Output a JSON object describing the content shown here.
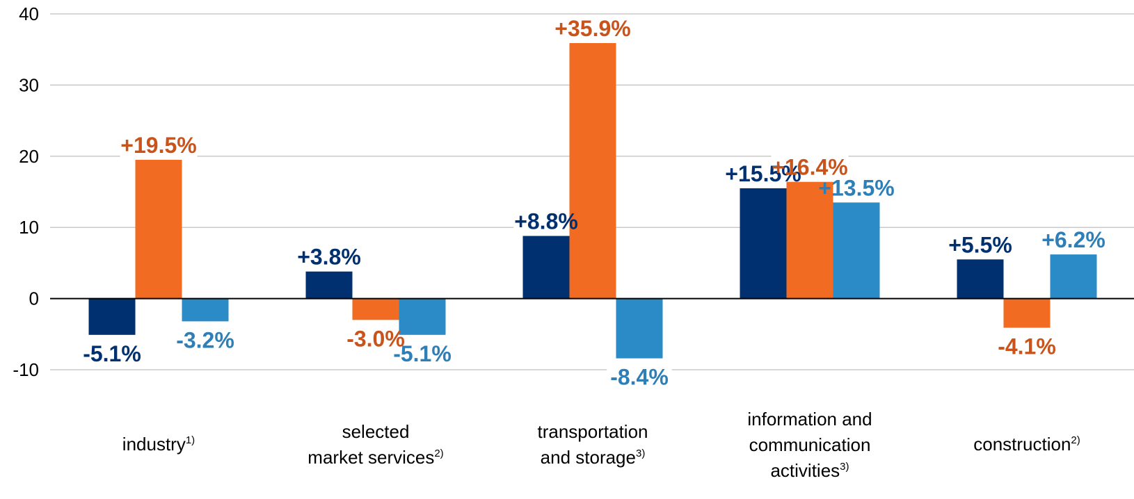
{
  "chart_data": {
    "type": "bar",
    "categories": [
      {
        "lines": [
          "industry"
        ],
        "sup": "1)"
      },
      {
        "lines": [
          "selected",
          "market services"
        ],
        "sup": "2)"
      },
      {
        "lines": [
          "transportation",
          "and storage"
        ],
        "sup": "3)"
      },
      {
        "lines": [
          "information and",
          "communication",
          "activities"
        ],
        "sup": "3)"
      },
      {
        "lines": [
          "construction"
        ],
        "sup": "2)"
      }
    ],
    "series": [
      {
        "color": "#003070",
        "label_color": "#003070",
        "values": [
          -5.1,
          3.8,
          8.8,
          15.5,
          5.5
        ],
        "labels": [
          "-5.1%",
          "+3.8%",
          "+8.8%",
          "+15.5%",
          "+5.5%"
        ]
      },
      {
        "color": "#F26B22",
        "label_color": "#C8541B",
        "values": [
          19.5,
          -3.0,
          35.9,
          16.4,
          -4.1
        ],
        "labels": [
          "+19.5%",
          "-3.0%",
          "+35.9%",
          "+16.4%",
          "-4.1%"
        ]
      },
      {
        "color": "#2B8BC6",
        "label_color": "#2E7FB8",
        "values": [
          -3.2,
          -5.1,
          -8.4,
          13.5,
          6.2
        ],
        "labels": [
          "-3.2%",
          "-5.1%",
          "-8.4%",
          "+13.5%",
          "+6.2%"
        ]
      }
    ],
    "y_ticks": [
      {
        "value": 40,
        "label": "40"
      },
      {
        "value": 30,
        "label": "30"
      },
      {
        "value": 20,
        "label": "20"
      },
      {
        "value": 10,
        "label": "10"
      },
      {
        "value": 0,
        "label": "0"
      },
      {
        "value": -10,
        "label": "-10"
      }
    ],
    "ylim": [
      -10,
      40
    ],
    "grid": true,
    "legend": "none"
  }
}
